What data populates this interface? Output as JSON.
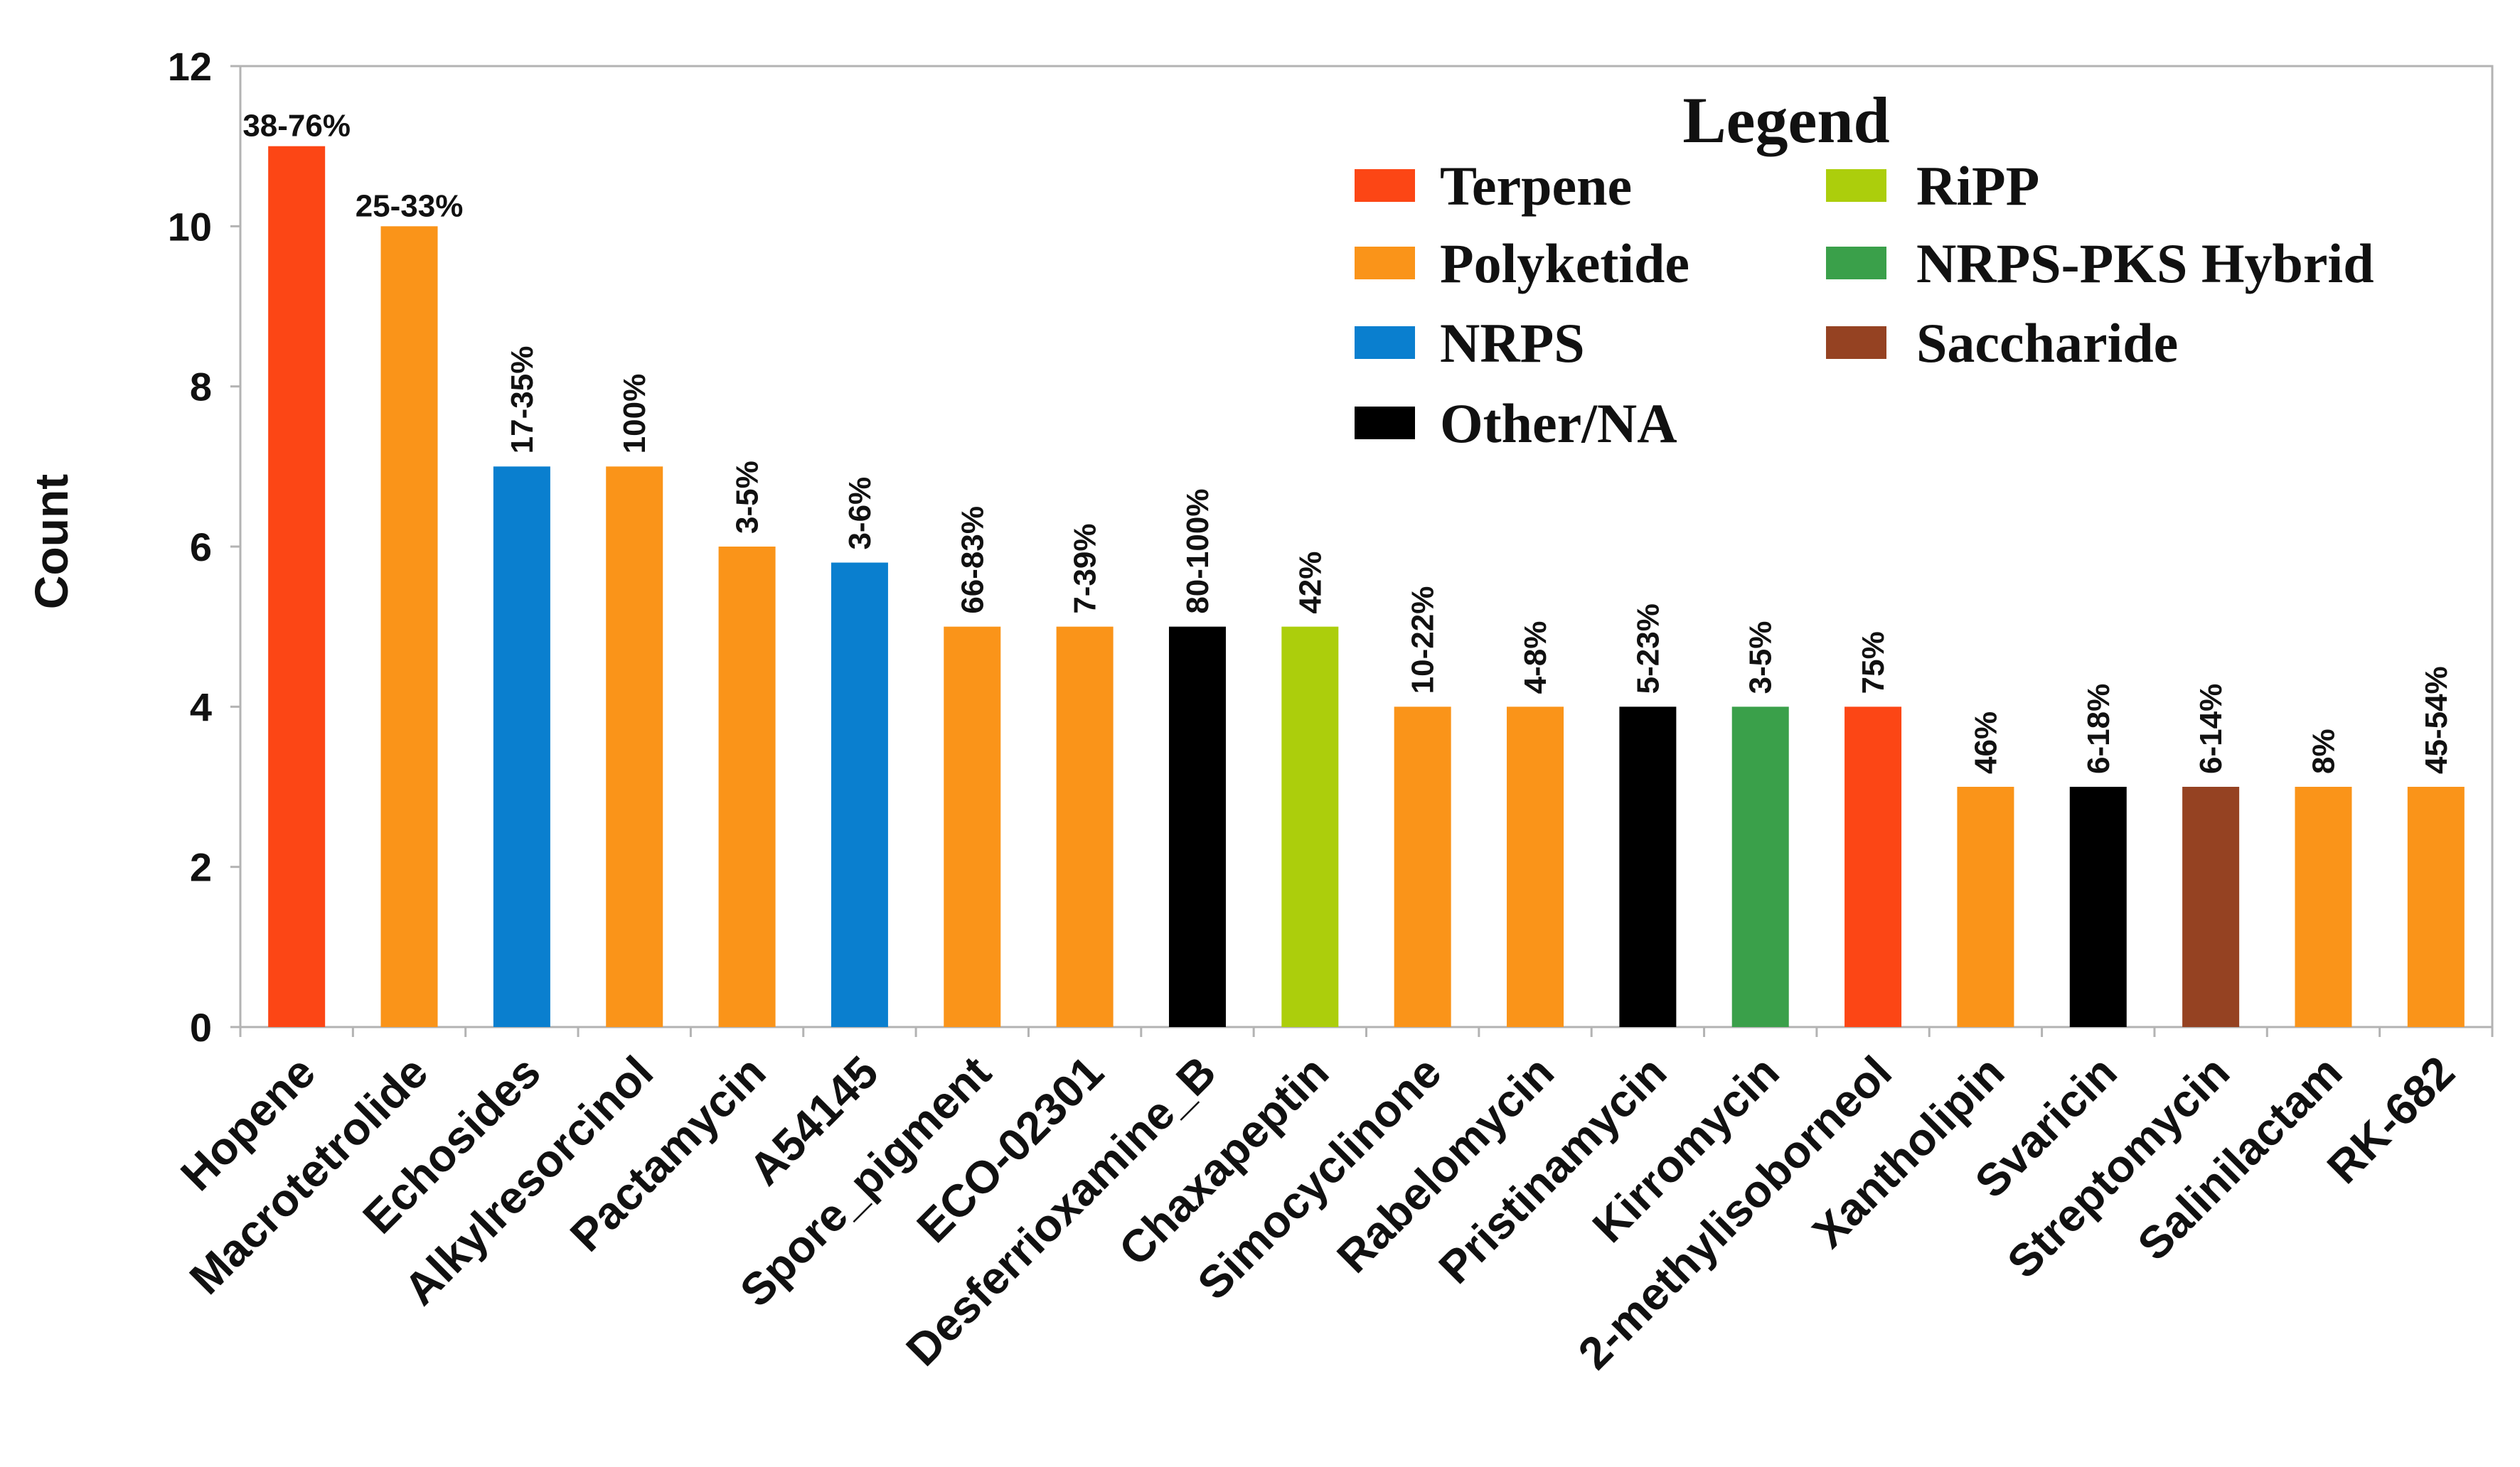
{
  "chart_data": {
    "type": "bar",
    "title": "",
    "xlabel": "",
    "ylabel": "Count",
    "ylim": [
      0,
      12
    ],
    "yticks": [
      0,
      2,
      4,
      6,
      8,
      10,
      12
    ],
    "grid": false,
    "legend_position": "top-right",
    "categories": [
      "Hopene",
      "Macrotetrolide",
      "Echosides",
      "Alkylresorcinol",
      "Pactamycin",
      "A54145",
      "Spore_pigment",
      "ECO-02301",
      "Desferrioxamine_B",
      "Chaxapeptin",
      "Simocyclinone",
      "Rabelomycin",
      "Pristinamycin",
      "Kirromycin",
      "2-methylisoborneol",
      "Xantholipin",
      "Svaricin",
      "Streptomycin",
      "Salinilactam",
      "RK-682"
    ],
    "values": [
      11,
      10,
      7,
      7,
      6,
      5.8,
      5,
      5,
      5,
      5,
      4,
      4,
      4,
      4,
      4,
      3,
      3,
      3,
      3,
      3
    ],
    "classes": [
      "Terpene",
      "Polyketide",
      "NRPS",
      "Polyketide",
      "Polyketide",
      "NRPS",
      "Polyketide",
      "Polyketide",
      "Other/NA",
      "RiPP",
      "Polyketide",
      "Polyketide",
      "Other/NA",
      "NRPS-PKS Hybrid",
      "Terpene",
      "Polyketide",
      "Other/NA",
      "Saccharide",
      "Polyketide",
      "Polyketide"
    ],
    "data_labels": [
      "38-76%",
      "25-33%",
      "17-35%",
      "100%",
      "3-5%",
      "3-6%",
      "66-83%",
      "7-39%",
      "80-100%",
      "42%",
      "10-22%",
      "4-8%",
      "5-23%",
      "3-5%",
      "75%",
      "46%",
      "6-18%",
      "6-14%",
      "8%",
      "45-54%"
    ],
    "legend": {
      "title": "Legend",
      "entries": [
        {
          "name": "Terpene",
          "color": "#fc4615"
        },
        {
          "name": "Polyketide",
          "color": "#fa9419"
        },
        {
          "name": "NRPS",
          "color": "#0a7fcf"
        },
        {
          "name": "Other/NA",
          "color": "#000000"
        },
        {
          "name": "RiPP",
          "color": "#acce0c"
        },
        {
          "name": "NRPS-PKS Hybrid",
          "color": "#3aa04a"
        },
        {
          "name": "Saccharide",
          "color": "#954222"
        }
      ]
    }
  }
}
